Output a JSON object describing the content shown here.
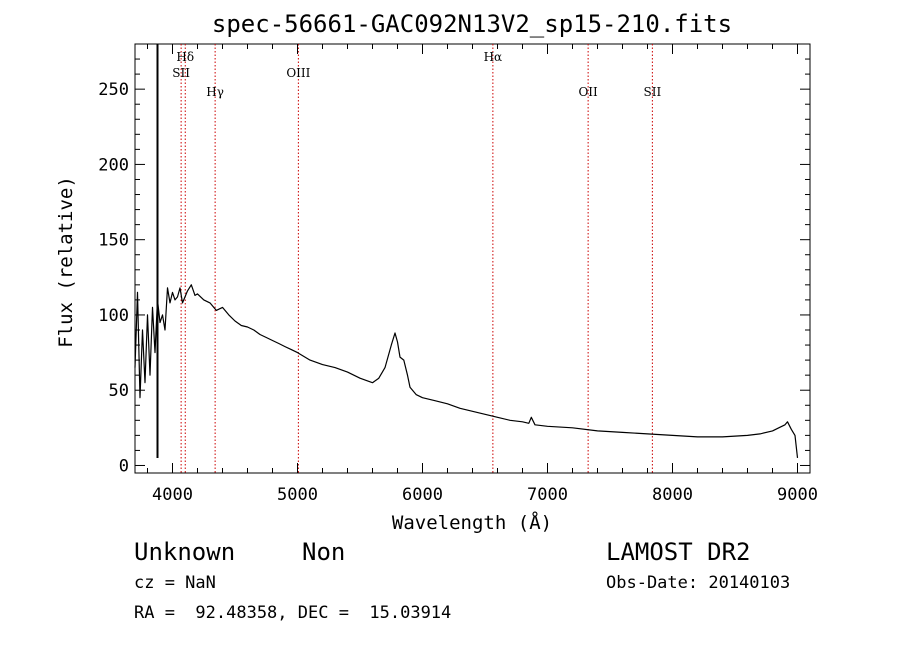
{
  "chart_data": {
    "type": "line",
    "title": "spec-56661-GAC092N13V2_sp15-210.fits",
    "xlabel": "Wavelength (Å)",
    "ylabel": "Flux (relative)",
    "xlim": [
      3700,
      9100
    ],
    "ylim": [
      -5,
      280
    ],
    "xticks": [
      4000,
      5000,
      6000,
      7000,
      8000,
      9000
    ],
    "yticks": [
      0,
      50,
      100,
      150,
      200,
      250
    ],
    "grid": false,
    "line_color": "#000000",
    "marker_color": "#cc0000",
    "lines": [
      {
        "label": "Hδ",
        "x": 4102,
        "tier": 0
      },
      {
        "label": "SII",
        "x": 4069,
        "tier": 1
      },
      {
        "label": "Hγ",
        "x": 4341,
        "tier": 2
      },
      {
        "label": "OIII",
        "x": 5007,
        "tier": 1
      },
      {
        "label": "Hα",
        "x": 6563,
        "tier": 0
      },
      {
        "label": "OII",
        "x": 7325,
        "tier": 2
      },
      {
        "label": "SII",
        "x": 7839,
        "tier": 2
      }
    ],
    "spike": {
      "x": 3880,
      "y_from": 5,
      "y_to": 280
    },
    "series": [
      {
        "x": [
          3700,
          3720,
          3740,
          3760,
          3780,
          3800,
          3820,
          3840,
          3860,
          3880,
          3900,
          3920,
          3940,
          3960,
          3980,
          4000,
          4020,
          4040,
          4060,
          4080,
          4100,
          4120,
          4150,
          4180,
          4200,
          4250,
          4300,
          4350,
          4400,
          4450,
          4500,
          4550,
          4600,
          4650,
          4700,
          4750,
          4800,
          4850,
          4900,
          4950,
          5000,
          5100,
          5200,
          5300,
          5400,
          5500,
          5600,
          5650,
          5700,
          5750,
          5780,
          5800,
          5820,
          5850,
          5880,
          5900,
          5950,
          6000,
          6100,
          6200,
          6300,
          6400,
          6500,
          6600,
          6700,
          6800,
          6850,
          6870,
          6900,
          7000,
          7200,
          7400,
          7600,
          7800,
          8000,
          8200,
          8400,
          8600,
          8700,
          8800,
          8850,
          8900,
          8920,
          8950,
          8980,
          9000
        ],
        "y": [
          65,
          115,
          45,
          90,
          55,
          100,
          60,
          105,
          75,
          110,
          95,
          100,
          90,
          118,
          108,
          115,
          110,
          112,
          118,
          108,
          112,
          116,
          120,
          113,
          114,
          110,
          108,
          103,
          105,
          100,
          96,
          93,
          92,
          90,
          87,
          85,
          83,
          81,
          79,
          77,
          75,
          70,
          67,
          65,
          62,
          58,
          55,
          58,
          65,
          80,
          88,
          82,
          72,
          70,
          60,
          52,
          47,
          45,
          43,
          41,
          38,
          36,
          34,
          32,
          30,
          29,
          28,
          32,
          27,
          26,
          25,
          23,
          22,
          21,
          20,
          19,
          19,
          20,
          21,
          23,
          25,
          27,
          29,
          24,
          20,
          5
        ]
      }
    ]
  },
  "footer": {
    "object_class": "Unknown",
    "object_subclass": "Non",
    "survey": "LAMOST DR2",
    "cz": "cz = NaN",
    "obs_date": "Obs-Date: 20140103",
    "coords": "RA =  92.48358, DEC =  15.03914"
  }
}
